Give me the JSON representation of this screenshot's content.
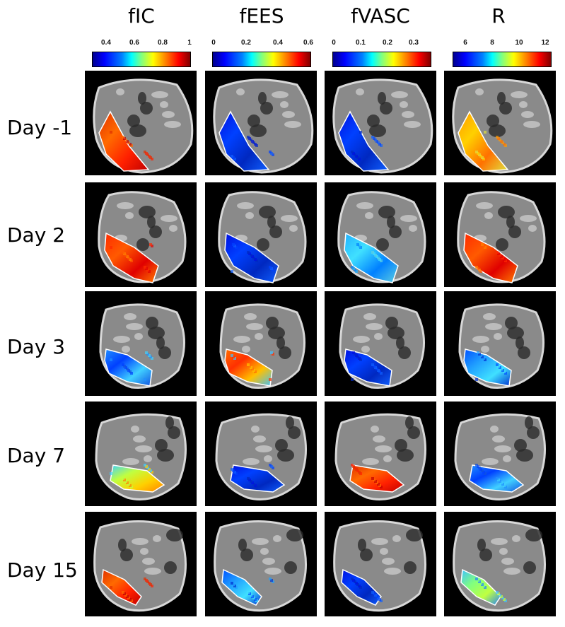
{
  "columns": [
    {
      "title": "fIC",
      "ticks": [
        "0.4",
        "0.6",
        "0.8",
        "1"
      ]
    },
    {
      "title": "fEES",
      "ticks": [
        "0",
        "0.2",
        "0.4",
        "0.6"
      ]
    },
    {
      "title": "fVASC",
      "ticks": [
        "0",
        "0.1",
        "0.2",
        "0.3"
      ]
    },
    {
      "title": "R",
      "ticks": [
        "6",
        "8",
        "10",
        "12"
      ]
    }
  ],
  "rows": [
    {
      "label": "Day -1"
    },
    {
      "label": "Day 2"
    },
    {
      "label": "Day 3"
    },
    {
      "label": "Day 7"
    },
    {
      "label": "Day 15"
    }
  ],
  "colormap": "jet",
  "colors": {
    "background": "#ffffff",
    "tile_background": "#000000"
  },
  "overlay_hues": [
    [
      "red-orange",
      "blue",
      "blue",
      "orange-yellow"
    ],
    [
      "red",
      "blue",
      "cyan",
      "red"
    ],
    [
      "cyan-blue",
      "orange-red",
      "blue",
      "blue-cyan"
    ],
    [
      "cyan-yellow",
      "blue",
      "red-orange",
      "cyan-blue"
    ],
    [
      "red-orange",
      "blue-cyan",
      "blue",
      "cyan-green"
    ]
  ]
}
